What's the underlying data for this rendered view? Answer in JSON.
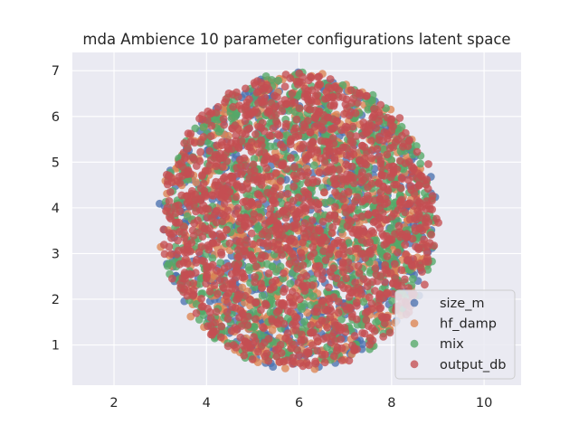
{
  "chart_data": {
    "type": "scatter",
    "title": "mda Ambience 10 parameter configurations latent space",
    "xlabel": "",
    "ylabel": "",
    "xlim": [
      1.1,
      10.8
    ],
    "ylim": [
      0.12,
      7.4
    ],
    "xticks": [
      2,
      4,
      6,
      8,
      10
    ],
    "yticks": [
      1,
      2,
      3,
      4,
      5,
      6,
      7
    ],
    "grid": true,
    "legend_position": "lower-right",
    "cloud": {
      "center_x": 6.0,
      "center_y": 3.7,
      "radius_x": 3.0,
      "radius_y": 3.25
    },
    "series": [
      {
        "name": "size_m",
        "color": "#4c72b0",
        "count": 700
      },
      {
        "name": "hf_damp",
        "color": "#dd8452",
        "count": 700
      },
      {
        "name": "mix",
        "color": "#55a868",
        "count": 900
      },
      {
        "name": "output_db",
        "color": "#c44e52",
        "count": 1400
      }
    ]
  }
}
